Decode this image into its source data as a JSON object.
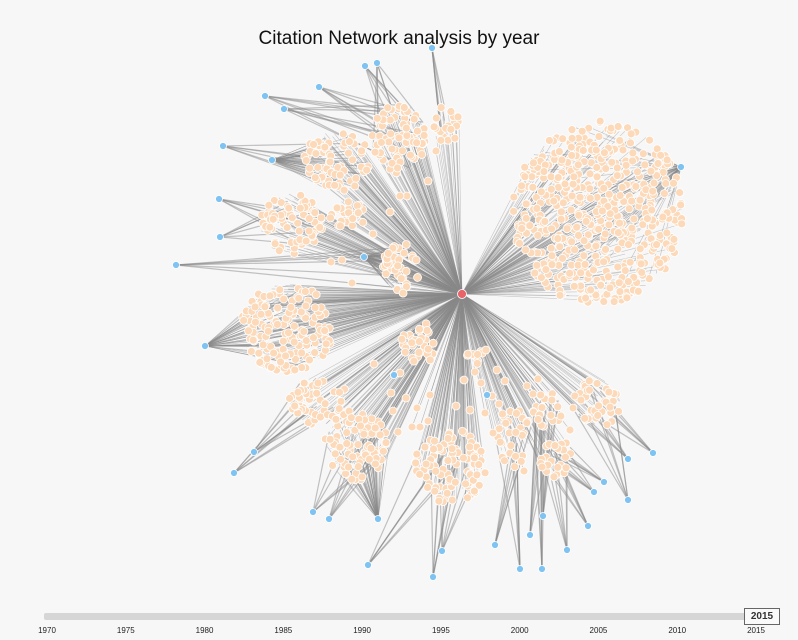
{
  "title": "Citation Network analysis by year",
  "timeline": {
    "ticks": [
      "1970",
      "1975",
      "1980",
      "1985",
      "1990",
      "1995",
      "2000",
      "2005",
      "2010",
      "2015"
    ],
    "selected_year": "2015"
  },
  "colors": {
    "center_node": "#e8646b",
    "hub_node": "#7fc3f2",
    "leaf_node": "#fcd9b9",
    "edge": "#8a8a8a",
    "background": "#f7f7f7"
  }
}
